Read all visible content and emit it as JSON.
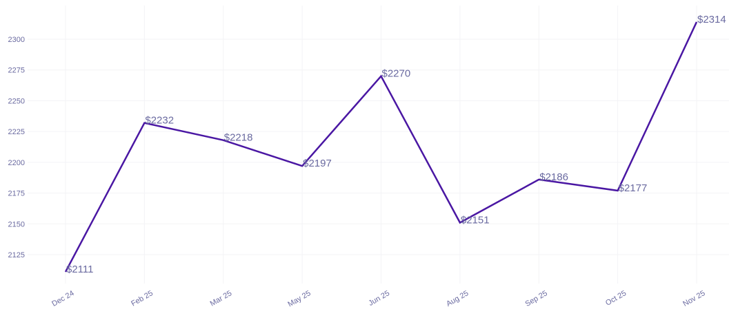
{
  "chart_data": {
    "type": "line",
    "categories": [
      "Dec 24",
      "Feb 25",
      "Mar 25",
      "May 25",
      "Jun 25",
      "Aug 25",
      "Sep 25",
      "Oct 25",
      "Nov 25"
    ],
    "series": [
      {
        "values": [
          2111,
          2232,
          2218,
          2197,
          2270,
          2151,
          2186,
          2177,
          2314
        ],
        "data_labels": [
          "$2111",
          "$2232",
          "$2218",
          "$2197",
          "$2270",
          "$2151",
          "$2186",
          "$2177",
          "$2314"
        ]
      }
    ],
    "y_ticks": [
      2125,
      2150,
      2175,
      2200,
      2225,
      2250,
      2275,
      2300
    ],
    "ylim": [
      2103,
      2320
    ],
    "grid": true,
    "legend": "none",
    "colors": {
      "line": "#4a17a3",
      "text": "#6a6aa0",
      "grid": "#f3f3f6"
    }
  }
}
